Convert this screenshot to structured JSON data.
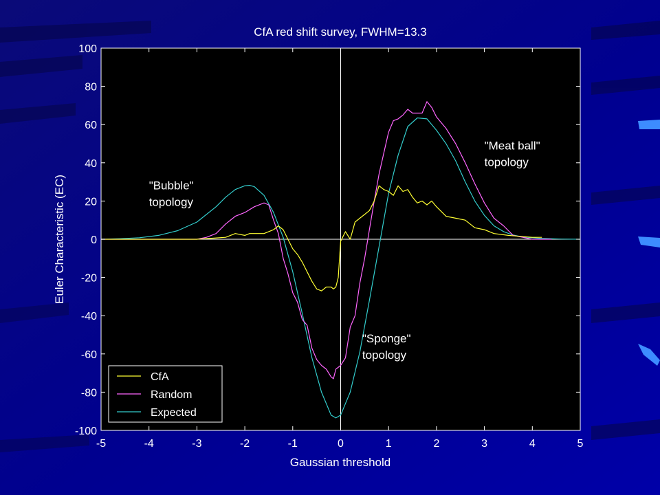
{
  "chart_data": {
    "type": "line",
    "title": "CfA red shift survey, FWHM=13.3",
    "xlabel": "Gaussian threshold",
    "ylabel": "Euler Characteristic (EC)",
    "xlim": [
      -5,
      5
    ],
    "ylim": [
      -100,
      100
    ],
    "xticks": [
      "-5",
      "-4",
      "-3",
      "-2",
      "-1",
      "0",
      "1",
      "2",
      "3",
      "4",
      "5"
    ],
    "yticks": [
      "100",
      "80",
      "60",
      "40",
      "20",
      "0",
      "-20",
      "-40",
      "-60",
      "-80",
      "-100"
    ],
    "grid": false,
    "zero_axes": true,
    "legend_position": "bottom-left",
    "annotations": [
      {
        "lines": [
          "\"Bubble\"",
          "topology"
        ],
        "x": -4.0,
        "y": 26
      },
      {
        "lines": [
          "\"Sponge\"",
          "topology"
        ],
        "x": 0.45,
        "y": -54
      },
      {
        "lines": [
          "\"Meat ball\"",
          " topology"
        ],
        "x": 3.0,
        "y": 47
      }
    ],
    "series": [
      {
        "name": "CfA",
        "color": "#ffff33",
        "x": [
          -5.0,
          -3.0,
          -2.4,
          -2.2,
          -2.0,
          -1.9,
          -1.8,
          -1.6,
          -1.5,
          -1.4,
          -1.3,
          -1.2,
          -1.1,
          -1.0,
          -0.9,
          -0.8,
          -0.7,
          -0.6,
          -0.5,
          -0.4,
          -0.3,
          -0.2,
          -0.15,
          -0.1,
          -0.05,
          0.0,
          0.1,
          0.2,
          0.3,
          0.4,
          0.5,
          0.6,
          0.7,
          0.8,
          0.9,
          1.0,
          1.1,
          1.2,
          1.3,
          1.4,
          1.5,
          1.6,
          1.7,
          1.8,
          1.9,
          2.0,
          2.2,
          2.4,
          2.6,
          2.8,
          3.0,
          3.2,
          3.5,
          4.0,
          4.2
        ],
        "y": [
          0,
          0,
          1,
          3,
          2,
          3,
          3,
          3,
          4,
          5,
          7,
          5,
          0,
          -5,
          -8,
          -12,
          -17,
          -22,
          -26,
          -27,
          -25,
          -25,
          -26,
          -25,
          -20,
          -1,
          4,
          0,
          9,
          11,
          13,
          15,
          20,
          28,
          26,
          25,
          23,
          28,
          25,
          26,
          22,
          19,
          20,
          18,
          20,
          17,
          12,
          11,
          10,
          6,
          5,
          3,
          2,
          1,
          1
        ]
      },
      {
        "name": "Random",
        "color": "#ff66ff",
        "x": [
          -5.0,
          -3.0,
          -2.8,
          -2.6,
          -2.4,
          -2.2,
          -2.0,
          -1.8,
          -1.6,
          -1.5,
          -1.4,
          -1.3,
          -1.2,
          -1.1,
          -1.0,
          -0.9,
          -0.8,
          -0.7,
          -0.6,
          -0.5,
          -0.4,
          -0.3,
          -0.2,
          -0.15,
          -0.1,
          0.0,
          0.1,
          0.2,
          0.3,
          0.4,
          0.5,
          0.6,
          0.7,
          0.8,
          0.9,
          1.0,
          1.1,
          1.2,
          1.3,
          1.4,
          1.5,
          1.6,
          1.7,
          1.8,
          1.9,
          2.0,
          2.2,
          2.4,
          2.6,
          2.8,
          3.0,
          3.2,
          3.4,
          3.6,
          3.8,
          4.0,
          4.4
        ],
        "y": [
          0,
          0,
          1,
          3,
          8,
          12,
          14,
          17,
          19,
          18,
          10,
          3,
          -10,
          -18,
          -28,
          -33,
          -42,
          -45,
          -57,
          -63,
          -66,
          -68,
          -72,
          -73,
          -68,
          -66,
          -62,
          -46,
          -40,
          -23,
          -10,
          5,
          20,
          34,
          45,
          56,
          62,
          63,
          65,
          68,
          66,
          66,
          66,
          72,
          69,
          64,
          58,
          50,
          40,
          29,
          19,
          11,
          7,
          2,
          1,
          0,
          0
        ]
      },
      {
        "name": "Expected",
        "color": "#33cccc",
        "x": [
          -5.0,
          -4.6,
          -4.2,
          -3.8,
          -3.4,
          -3.0,
          -2.8,
          -2.6,
          -2.4,
          -2.2,
          -2.0,
          -1.9,
          -1.8,
          -1.6,
          -1.4,
          -1.2,
          -1.0,
          -0.8,
          -0.6,
          -0.4,
          -0.2,
          -0.1,
          0.0,
          0.2,
          0.4,
          0.6,
          0.8,
          1.0,
          1.2,
          1.4,
          1.6,
          1.8,
          2.0,
          2.2,
          2.4,
          2.6,
          2.8,
          3.0,
          3.2,
          3.4,
          3.6,
          3.8,
          4.2,
          4.6,
          5.0
        ],
        "y": [
          0,
          0.3,
          0.8,
          2,
          4.5,
          9,
          13,
          17,
          22,
          26,
          28,
          28.2,
          27.5,
          23,
          14,
          1,
          -17,
          -39,
          -62,
          -80,
          -92,
          -93.5,
          -92,
          -80,
          -59,
          -32,
          -4,
          24,
          44,
          59,
          63.5,
          63,
          57,
          50,
          41,
          30,
          20,
          12.5,
          7,
          4,
          2.2,
          1.2,
          0.4,
          0.1,
          0
        ]
      }
    ]
  }
}
